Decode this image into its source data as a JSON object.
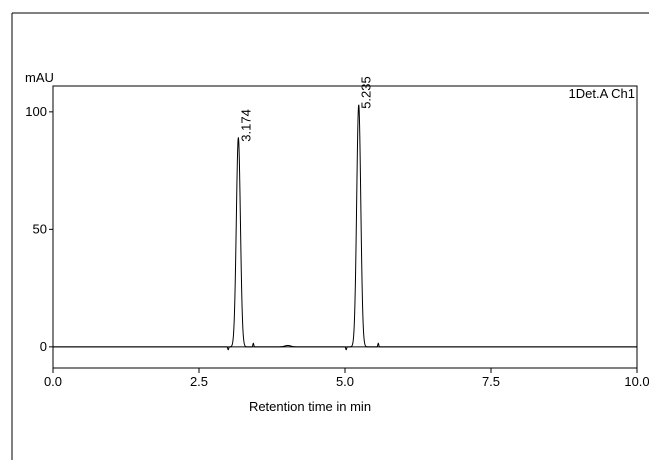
{
  "chart_data": {
    "type": "line",
    "title": "",
    "channel_label": "1Det.A Ch1",
    "ylabel": "mAU",
    "xlabel": "Retention time in min",
    "xlim": [
      0.0,
      10.0
    ],
    "ylim": [
      -9,
      111
    ],
    "x_ticks": [
      0.0,
      2.5,
      5.0,
      7.5,
      10.0
    ],
    "x_tick_labels": [
      "0.0",
      "2.5",
      "5.0",
      "7.5",
      "10.0"
    ],
    "y_ticks": [
      0,
      50,
      100
    ],
    "y_tick_labels": [
      "0",
      "50",
      "100"
    ],
    "grid": false,
    "baseline_mau": 0,
    "peaks": [
      {
        "retention_time": 3.174,
        "label": "3.174",
        "height_mau": 89
      },
      {
        "retention_time": 5.235,
        "label": "5.235",
        "height_mau": 103
      }
    ],
    "minor_features": [
      {
        "x": 3.0,
        "height_mau": -1.2,
        "width": 0.008
      },
      {
        "x": 3.43,
        "height_mau": 1.5,
        "width": 0.008
      },
      {
        "x": 4.02,
        "height_mau": 0.6,
        "width": 0.05
      },
      {
        "x": 5.02,
        "height_mau": -1.2,
        "width": 0.008
      },
      {
        "x": 5.57,
        "height_mau": 1.5,
        "width": 0.008
      }
    ],
    "color": "#000000"
  }
}
